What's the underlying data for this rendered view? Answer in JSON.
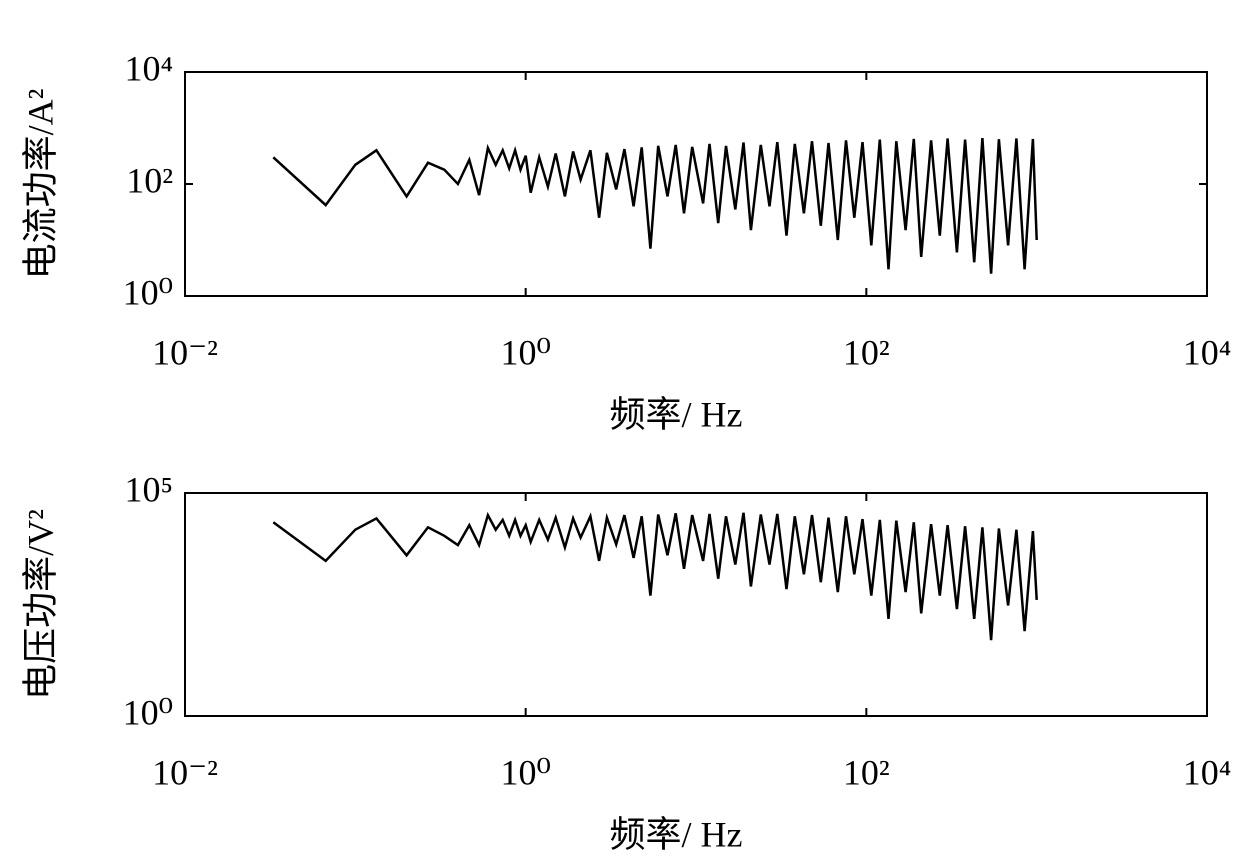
{
  "chart_data": [
    {
      "type": "line",
      "xlabel": "频率/ Hz",
      "ylabel": "电流功率/A²",
      "xscale": "log",
      "yscale": "log",
      "color": "#000000",
      "xlim": [
        0.01,
        10000
      ],
      "ylim": [
        1,
        10000
      ],
      "xticks": [
        {
          "value": 0.01,
          "label": "10⁻²"
        },
        {
          "value": 1,
          "label": "10⁰"
        },
        {
          "value": 100,
          "label": "10²"
        },
        {
          "value": 10000,
          "label": "10⁴"
        }
      ],
      "yticks": [
        {
          "value": 1,
          "label": "10⁰"
        },
        {
          "value": 100,
          "label": "10²"
        },
        {
          "value": 10000,
          "label": "10⁴"
        }
      ],
      "x": [
        0.033,
        0.067,
        0.1,
        0.133,
        0.2,
        0.267,
        0.333,
        0.4,
        0.467,
        0.533,
        0.6,
        0.667,
        0.733,
        0.8,
        0.867,
        0.933,
        1.0,
        1.07,
        1.2,
        1.35,
        1.5,
        1.7,
        1.9,
        2.1,
        2.4,
        2.7,
        3,
        3.4,
        3.8,
        4.3,
        4.8,
        5.4,
        6,
        6.8,
        7.6,
        8.5,
        9.5,
        11,
        12,
        13.5,
        15,
        17,
        19,
        21,
        24,
        27,
        30,
        34,
        38,
        43,
        48,
        54,
        60,
        68,
        76,
        85,
        95,
        107,
        120,
        135,
        150,
        170,
        190,
        210,
        240,
        270,
        300,
        340,
        380,
        430,
        480,
        540,
        600,
        680,
        760,
        850,
        950,
        1000
      ],
      "values": [
        300,
        42,
        220,
        400,
        60,
        240,
        180,
        100,
        270,
        63,
        440,
        220,
        400,
        190,
        400,
        180,
        320,
        70,
        300,
        90,
        350,
        60,
        380,
        120,
        400,
        25,
        360,
        80,
        420,
        40,
        450,
        7,
        480,
        60,
        500,
        30,
        460,
        45,
        520,
        20,
        480,
        35,
        550,
        15,
        500,
        40,
        560,
        12,
        520,
        30,
        580,
        18,
        540,
        10,
        600,
        25,
        560,
        8,
        620,
        3,
        580,
        15,
        640,
        5,
        600,
        12,
        650,
        6,
        620,
        4,
        660,
        2.5,
        630,
        8,
        650,
        3,
        640,
        10
      ]
    },
    {
      "type": "line",
      "xlabel": "频率/ Hz",
      "ylabel": "电压功率/V²",
      "xscale": "log",
      "yscale": "log",
      "color": "#000000",
      "xlim": [
        0.01,
        10000
      ],
      "ylim": [
        1,
        100000
      ],
      "xticks": [
        {
          "value": 0.01,
          "label": "10⁻²"
        },
        {
          "value": 1,
          "label": "10⁰"
        },
        {
          "value": 100,
          "label": "10²"
        },
        {
          "value": 10000,
          "label": "10⁴"
        }
      ],
      "yticks": [
        {
          "value": 1,
          "label": "10⁰"
        },
        {
          "value": 100000,
          "label": "10⁵"
        }
      ],
      "x": [
        0.033,
        0.067,
        0.1,
        0.133,
        0.2,
        0.267,
        0.333,
        0.4,
        0.467,
        0.533,
        0.6,
        0.667,
        0.733,
        0.8,
        0.867,
        0.933,
        1.0,
        1.07,
        1.2,
        1.35,
        1.5,
        1.7,
        1.9,
        2.1,
        2.4,
        2.7,
        3,
        3.4,
        3.8,
        4.3,
        4.8,
        5.4,
        6,
        6.8,
        7.6,
        8.5,
        9.5,
        11,
        12,
        13.5,
        15,
        17,
        19,
        21,
        24,
        27,
        30,
        34,
        38,
        43,
        48,
        54,
        60,
        68,
        76,
        85,
        95,
        107,
        120,
        135,
        150,
        170,
        190,
        210,
        240,
        270,
        300,
        340,
        380,
        430,
        480,
        540,
        600,
        680,
        760,
        850,
        950,
        1000
      ],
      "values": [
        22000,
        3000,
        15000,
        27000,
        4000,
        17000,
        11000,
        6800,
        19000,
        6800,
        32000,
        15000,
        25000,
        11000,
        25000,
        11000,
        19000,
        8000,
        25000,
        9000,
        28000,
        6000,
        27000,
        10000,
        30000,
        3000,
        28000,
        7000,
        32000,
        3500,
        30000,
        500,
        33000,
        4000,
        35000,
        2000,
        32000,
        3000,
        34000,
        1200,
        30000,
        2500,
        36000,
        800,
        33000,
        2500,
        34000,
        700,
        30000,
        1500,
        32000,
        1000,
        28000,
        600,
        30000,
        1500,
        26000,
        500,
        25000,
        150,
        24000,
        600,
        22000,
        200,
        20000,
        500,
        19000,
        250,
        18000,
        150,
        17000,
        50,
        16000,
        300,
        15000,
        80,
        14000,
        400
      ]
    }
  ]
}
